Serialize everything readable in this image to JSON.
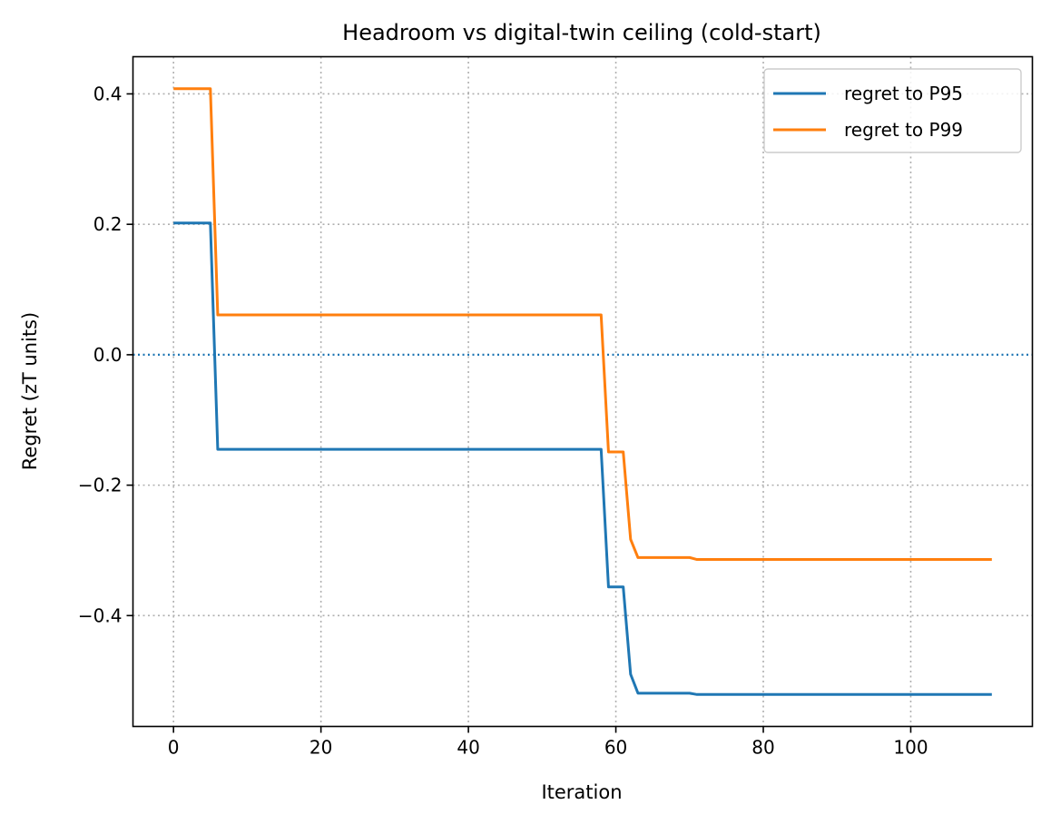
{
  "chart_data": {
    "type": "line",
    "title": "Headroom vs digital-twin ceiling (cold-start)",
    "xlabel": "Iteration",
    "ylabel": "Regret (zT units)",
    "xlim": [
      -5.5,
      116.5
    ],
    "ylim": [
      -0.57,
      0.457
    ],
    "xticks": [
      0,
      20,
      40,
      60,
      80,
      100
    ],
    "yticks": [
      0.4,
      0.2,
      0.0,
      -0.2,
      -0.4
    ],
    "ytick_labels": [
      "0.4",
      "0.2",
      "0.0",
      "−0.2",
      "−0.4"
    ],
    "grid": true,
    "legend_position": "upper right",
    "reference_line": {
      "y": 0.0,
      "color": "#1f77b4",
      "style": "dotted"
    },
    "series": [
      {
        "name": "regret to P95",
        "color": "#1f77b4",
        "x": [
          0,
          5,
          6,
          58,
          59,
          61,
          62,
          63,
          70,
          71,
          111
        ],
        "y": [
          0.202,
          0.202,
          -0.145,
          -0.145,
          -0.356,
          -0.356,
          -0.49,
          -0.519,
          -0.519,
          -0.521,
          -0.521
        ]
      },
      {
        "name": "regret to P99",
        "color": "#ff7f0e",
        "x": [
          0,
          5,
          6,
          58,
          59,
          61,
          62,
          63,
          70,
          71,
          111
        ],
        "y": [
          0.408,
          0.408,
          0.061,
          0.061,
          -0.149,
          -0.149,
          -0.283,
          -0.311,
          -0.311,
          -0.314,
          -0.314
        ]
      }
    ]
  }
}
